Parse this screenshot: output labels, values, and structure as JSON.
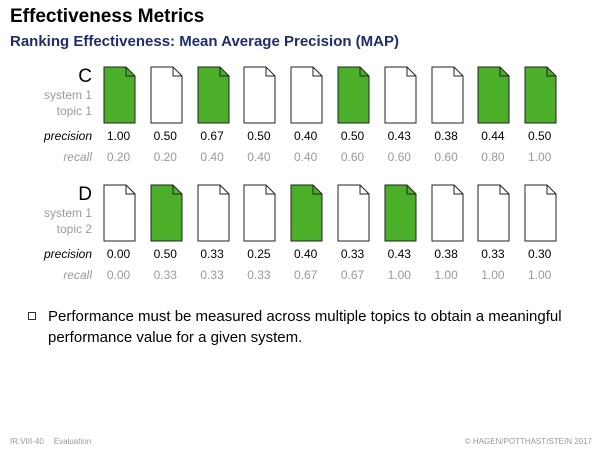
{
  "header": {
    "title": "Effectiveness Metrics",
    "subtitle": "Ranking Effectiveness: Mean Average Precision (MAP)"
  },
  "colors": {
    "relevant": "#4caf2a",
    "nonrelevant": "#ffffff",
    "title_blue": "#1f2d6e"
  },
  "labels": {
    "precision": "precision",
    "recall": "recall"
  },
  "rankings": [
    {
      "letter": "C",
      "system": "system 1",
      "topic": "topic 1",
      "relevant": [
        true,
        false,
        true,
        false,
        false,
        true,
        false,
        false,
        true,
        true
      ],
      "precision": [
        "1.00",
        "0.50",
        "0.67",
        "0.50",
        "0.40",
        "0.50",
        "0.43",
        "0.38",
        "0.44",
        "0.50"
      ],
      "recall": [
        "0.20",
        "0.20",
        "0.40",
        "0.40",
        "0.40",
        "0.60",
        "0.60",
        "0.60",
        "0.80",
        "1.00"
      ]
    },
    {
      "letter": "D",
      "system": "system 1",
      "topic": "topic 2",
      "relevant": [
        false,
        true,
        false,
        false,
        true,
        false,
        true,
        false,
        false,
        false
      ],
      "precision": [
        "0.00",
        "0.50",
        "0.33",
        "0.25",
        "0.40",
        "0.33",
        "0.43",
        "0.38",
        "0.33",
        "0.30"
      ],
      "recall": [
        "0.00",
        "0.33",
        "0.33",
        "0.33",
        "0.67",
        "0.67",
        "1.00",
        "1.00",
        "1.00",
        "1.00"
      ]
    }
  ],
  "bullet": "Performance must be measured across multiple topics to obtain a meaningful performance value for a given system.",
  "footer": {
    "slide": "IR:VIII-40",
    "section": "Evaluation",
    "copyright": "© HAGEN/POTTHAST/STEIN 2017"
  }
}
